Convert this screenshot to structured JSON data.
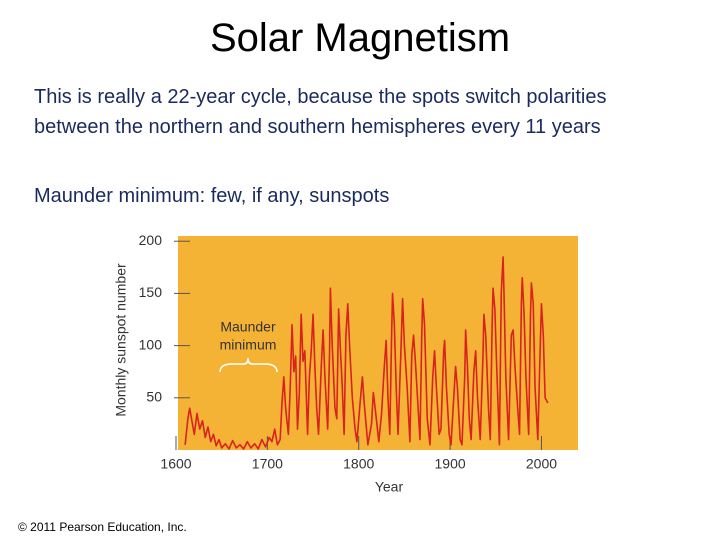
{
  "title": "Solar Magnetism",
  "paragraphs": [
    "This is really a 22-year cycle, because the spots switch polarities between the northern and southern hemispheres every 11 years",
    "Maunder minimum: few, if any, sunspots"
  ],
  "copyright": "© 2011 Pearson Education, Inc.",
  "chart_data": {
    "type": "line",
    "y_label": "Monthly sunspot number",
    "x_label": "Year",
    "annotation": [
      "Maunder",
      "minimum"
    ],
    "background": "#f5b335",
    "xlim": [
      1600,
      2040
    ],
    "xticks": [
      1600,
      1700,
      1800,
      1900,
      2000
    ],
    "ylim": [
      0,
      205
    ],
    "yticks": [
      50,
      100,
      150,
      200
    ],
    "x": [
      1610,
      1613,
      1615,
      1618,
      1620,
      1623,
      1626,
      1629,
      1632,
      1635,
      1638,
      1641,
      1644,
      1647,
      1650,
      1654,
      1658,
      1662,
      1666,
      1670,
      1674,
      1678,
      1682,
      1686,
      1690,
      1694,
      1698,
      1702,
      1705,
      1708,
      1711,
      1714,
      1716,
      1718,
      1720,
      1723,
      1725,
      1727,
      1729,
      1731,
      1733,
      1735,
      1737,
      1739,
      1741,
      1744,
      1746,
      1748,
      1750,
      1752,
      1754,
      1756,
      1759,
      1761,
      1763,
      1766,
      1768,
      1769,
      1771,
      1774,
      1776,
      1778,
      1780,
      1782,
      1784,
      1786,
      1788,
      1790,
      1793,
      1796,
      1798,
      1801,
      1804,
      1806,
      1810,
      1814,
      1816,
      1818,
      1822,
      1825,
      1828,
      1830,
      1832,
      1834,
      1836,
      1837,
      1839,
      1841,
      1843,
      1846,
      1848,
      1850,
      1853,
      1856,
      1858,
      1860,
      1862,
      1865,
      1867,
      1869,
      1870,
      1872,
      1875,
      1878,
      1881,
      1883,
      1885,
      1888,
      1890,
      1893,
      1894,
      1896,
      1899,
      1901,
      1904,
      1906,
      1908,
      1911,
      1913,
      1916,
      1917,
      1919,
      1921,
      1923,
      1926,
      1928,
      1930,
      1933,
      1936,
      1937,
      1939,
      1942,
      1944,
      1946,
      1947,
      1949,
      1951,
      1954,
      1956,
      1958,
      1959,
      1961,
      1964,
      1967,
      1969,
      1971,
      1974,
      1976,
      1978,
      1979,
      1981,
      1983,
      1986,
      1988,
      1989,
      1991,
      1993,
      1996,
      1999,
      2000,
      2002,
      2004,
      2007
    ],
    "series": [
      {
        "color": "#d9231f",
        "values": [
          5,
          30,
          40,
          25,
          15,
          35,
          20,
          28,
          12,
          22,
          8,
          15,
          4,
          10,
          2,
          6,
          1,
          9,
          2,
          5,
          1,
          8,
          2,
          6,
          1,
          10,
          3,
          12,
          8,
          20,
          5,
          10,
          45,
          70,
          40,
          15,
          60,
          120,
          75,
          90,
          20,
          55,
          130,
          85,
          95,
          15,
          70,
          95,
          130,
          80,
          40,
          15,
          80,
          115,
          70,
          20,
          90,
          155,
          100,
          40,
          30,
          135,
          95,
          60,
          15,
          110,
          140,
          100,
          50,
          20,
          8,
          40,
          70,
          45,
          5,
          25,
          55,
          40,
          8,
          35,
          80,
          105,
          50,
          15,
          110,
          150,
          120,
          60,
          15,
          90,
          145,
          100,
          60,
          8,
          90,
          110,
          85,
          40,
          10,
          110,
          145,
          120,
          30,
          5,
          70,
          95,
          60,
          15,
          20,
          95,
          105,
          60,
          15,
          5,
          50,
          80,
          60,
          10,
          5,
          70,
          115,
          80,
          30,
          10,
          75,
          95,
          50,
          10,
          90,
          130,
          110,
          40,
          10,
          120,
          155,
          135,
          80,
          5,
          150,
          185,
          150,
          70,
          10,
          110,
          115,
          80,
          40,
          15,
          140,
          165,
          130,
          70,
          15,
          130,
          160,
          140,
          60,
          10,
          110,
          140,
          110,
          50,
          45
        ]
      }
    ]
  }
}
